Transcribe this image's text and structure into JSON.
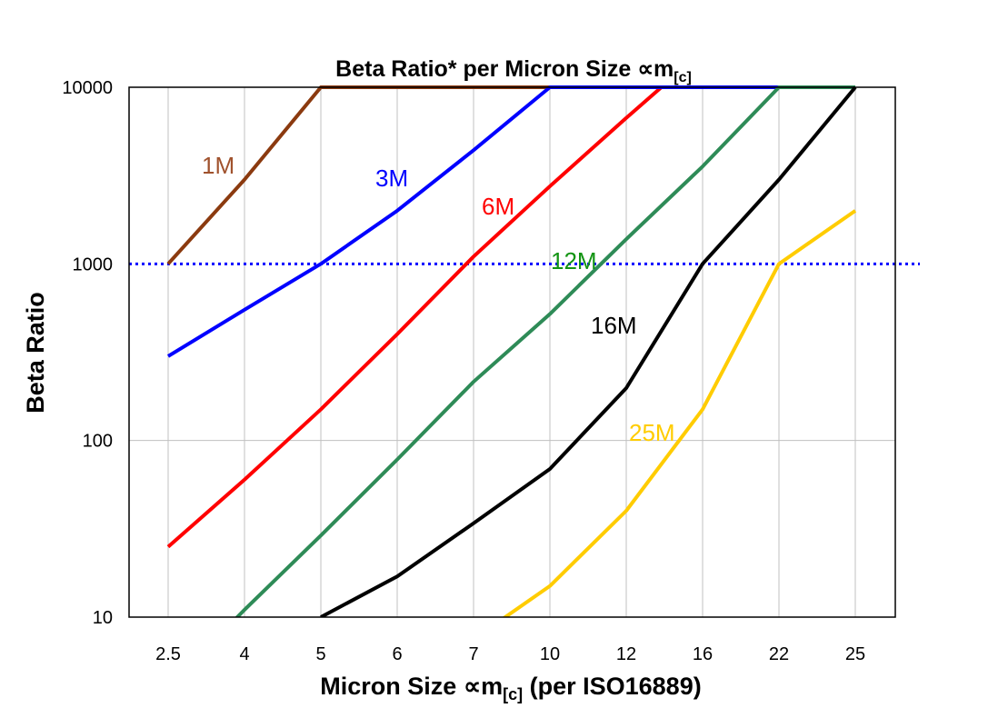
{
  "chart_data": {
    "type": "line",
    "title": "Beta Ratio* per Micron Size ",
    "title_symbol": "∝m",
    "title_sub": "[c]",
    "xlabel": "Micron Size ",
    "xlabel_symbol": "∝m",
    "xlabel_sub": "[c]",
    "xlabel_suffix": " (per ISO16889)",
    "ylabel": "Beta Ratio",
    "y_scale": "log",
    "ylim": [
      10,
      10000
    ],
    "yticks": [
      "10",
      "100",
      "1000",
      "10000"
    ],
    "categories": [
      "2.5",
      "4",
      "5",
      "6",
      "7",
      "10",
      "12",
      "16",
      "22",
      "25"
    ],
    "grid": true,
    "reference_line": {
      "value": 1000,
      "color": "#0000FF",
      "style": "dotted"
    },
    "series": [
      {
        "name": "1M",
        "color": "#8B3A0F",
        "values": [
          1000,
          3000,
          10000,
          10000,
          10000,
          10000,
          null,
          null,
          null,
          null
        ]
      },
      {
        "name": "6M",
        "color": "#FF0000",
        "values": [
          25,
          60,
          150,
          400,
          1100,
          2750,
          6700,
          16000,
          null,
          null
        ]
      },
      {
        "name": "3M",
        "color": "#0000FF",
        "values": [
          300,
          550,
          1000,
          2000,
          4400,
          10000,
          10000,
          10000,
          10000,
          null
        ]
      },
      {
        "name": "12M",
        "color": "#2E8B57",
        "label_color": "#139413",
        "values": [
          4,
          11,
          29,
          78,
          215,
          520,
          1380,
          3560,
          10000,
          10000
        ]
      },
      {
        "name": "16M",
        "color": "#000000",
        "values": [
          null,
          null,
          10,
          17,
          34,
          69,
          198,
          1000,
          3000,
          10000
        ]
      },
      {
        "name": "25M",
        "color": "#FFCC00",
        "values": [
          null,
          null,
          null,
          null,
          7.5,
          15,
          40,
          150,
          1000,
          2000
        ]
      }
    ]
  }
}
